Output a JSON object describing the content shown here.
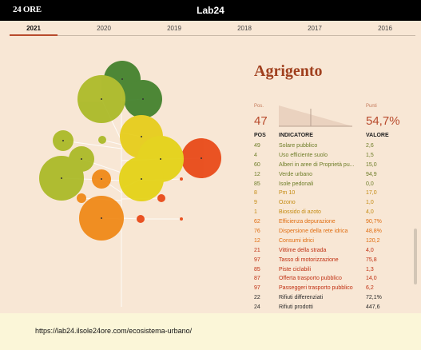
{
  "header": {
    "logo_left": "24 ORE",
    "logo_center": "Lab24"
  },
  "years": [
    {
      "label": "2021",
      "active": true
    },
    {
      "label": "2020",
      "active": false
    },
    {
      "label": "2019",
      "active": false
    },
    {
      "label": "2018",
      "active": false
    },
    {
      "label": "2017",
      "active": false
    },
    {
      "label": "2016",
      "active": false
    }
  ],
  "city": "Agrigento",
  "summary": {
    "pos_label": "Pos.",
    "pos_value": "47",
    "points_label": "Punti",
    "points_value": "54,7%"
  },
  "table": {
    "col_pos": "POS",
    "col_indicator": "INDICATORE",
    "col_value": "VALORE",
    "rows": [
      {
        "pos": "49",
        "indicator": "Solare pubblico",
        "value": "2,6",
        "color": "green"
      },
      {
        "pos": "4",
        "indicator": "Uso efficiente suolo",
        "value": "1,5",
        "color": "green"
      },
      {
        "pos": "60",
        "indicator": "Alberi in aree di Proprietà pu...",
        "value": "15,0",
        "color": "green"
      },
      {
        "pos": "12",
        "indicator": "Verde urbano",
        "value": "94,9",
        "color": "green"
      },
      {
        "pos": "85",
        "indicator": "Isole pedonali",
        "value": "0,0",
        "color": "green"
      },
      {
        "pos": "8",
        "indicator": "Pm 10",
        "value": "17,0",
        "color": "amber"
      },
      {
        "pos": "9",
        "indicator": "Ozono",
        "value": "1,0",
        "color": "amber"
      },
      {
        "pos": "1",
        "indicator": "Biossido di azoto",
        "value": "4,0",
        "color": "amber"
      },
      {
        "pos": "62",
        "indicator": "Efficienza depurazione",
        "value": "90,7%",
        "color": "orange"
      },
      {
        "pos": "76",
        "indicator": "Dispersione della rete idrica",
        "value": "48,8%",
        "color": "orange"
      },
      {
        "pos": "12",
        "indicator": "Consumi idrici",
        "value": "120,2",
        "color": "orange"
      },
      {
        "pos": "21",
        "indicator": "Vittime della strada",
        "value": "4,0",
        "color": "red"
      },
      {
        "pos": "97",
        "indicator": "Tasso di motorizzazione",
        "value": "75,8",
        "color": "red"
      },
      {
        "pos": "85",
        "indicator": "Piste ciclabili",
        "value": "1,3",
        "color": "red"
      },
      {
        "pos": "87",
        "indicator": "Offerta trasporto pubblico",
        "value": "14,0",
        "color": "red"
      },
      {
        "pos": "97",
        "indicator": "Passeggeri trasporto pubblico",
        "value": "6,2",
        "color": "red"
      },
      {
        "pos": "22",
        "indicator": "Rifiuti differenziati",
        "value": "72,1%",
        "color": "dark"
      },
      {
        "pos": "24",
        "indicator": "Rifiuti prodotti",
        "value": "447,6",
        "color": "dark"
      }
    ]
  },
  "footer": {
    "url": "https://lab24.ilsole24ore.com/ecosistema-urbano/"
  },
  "colors": {
    "green": "#7a8c2a",
    "amber": "#d29b10",
    "orange": "#e06d10",
    "red": "#c03012",
    "accent": "#b84a2c",
    "background": "#f8e7d5"
  }
}
